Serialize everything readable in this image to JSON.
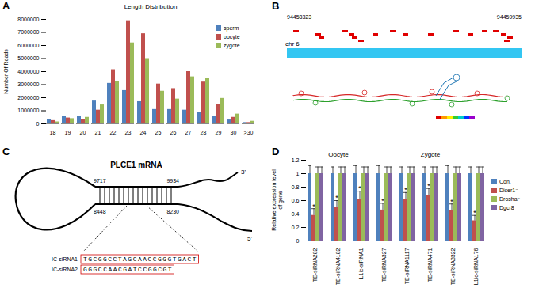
{
  "panel_labels": [
    "A",
    "B",
    "C",
    "D"
  ],
  "chart_data": [
    {
      "type": "bar",
      "title": "Length Distribution",
      "y_label": "Number Of Reads",
      "categories": [
        "18",
        "19",
        "20",
        "21",
        "22",
        "23",
        "24",
        "25",
        "26",
        "27",
        "28",
        "29",
        "30",
        ">30"
      ],
      "series": [
        {
          "name": "sperm",
          "color": "#4f81bd",
          "values": [
            350000,
            550000,
            600000,
            1750000,
            3100000,
            2550000,
            1700000,
            1100000,
            1100000,
            1050000,
            850000,
            600000,
            300000,
            100000
          ]
        },
        {
          "name": "oocyte",
          "color": "#c0504d",
          "values": [
            250000,
            450000,
            350000,
            1050000,
            4150000,
            7900000,
            6900000,
            3050000,
            2700000,
            4000000,
            3200000,
            1500000,
            500000,
            100000
          ]
        },
        {
          "name": "zygote",
          "color": "#9bbb59",
          "values": [
            150000,
            400000,
            500000,
            1450000,
            3250000,
            6200000,
            5000000,
            2500000,
            1900000,
            3600000,
            3500000,
            1950000,
            750000,
            200000
          ]
        }
      ],
      "ylim": [
        0,
        8000000
      ],
      "yticks": [
        0,
        1000000,
        2000000,
        3000000,
        4000000,
        5000000,
        6000000,
        7000000,
        8000000
      ],
      "grid": false,
      "legend": "top-right"
    },
    {
      "type": "bar",
      "y_label": "Relative expression level of gene",
      "categories": [
        "TE-siRNA282",
        "TE-siRNA4182",
        "L1ic-siRNA1",
        "TE-siRNA327",
        "TE-siRNA1117",
        "TE-siRNA471",
        "TE-siRNA3322",
        "L1ic-siRNA176"
      ],
      "groups": [
        {
          "name": "Oocyte",
          "from": "TE-siRNA282",
          "to": "L1ic-siRNA1"
        },
        {
          "name": "Zygote",
          "from": "TE-siRNA327",
          "to": "L1ic-siRNA176"
        }
      ],
      "series": [
        {
          "name": "Con.",
          "color": "#4f81bd",
          "values": [
            1,
            1,
            1,
            1,
            1,
            1,
            1,
            1
          ],
          "errors": [
            0.12,
            0.1,
            0.12,
            0.12,
            0.1,
            0.1,
            0.12,
            0.1
          ]
        },
        {
          "name": "Dicer1⁻",
          "color": "#c0504d",
          "values": [
            0.38,
            0.5,
            0.62,
            0.46,
            0.62,
            0.68,
            0.45,
            0.3
          ],
          "errors": [
            0.1,
            0.1,
            0.12,
            0.1,
            0.1,
            0.1,
            0.1,
            0.08
          ],
          "annotation": "*"
        },
        {
          "name": "Drosha⁻",
          "color": "#9bbb59",
          "values": [
            1,
            1,
            1,
            1,
            1,
            1,
            1,
            1
          ],
          "errors": [
            0.1,
            0.1,
            0.1,
            0.1,
            0.1,
            0.1,
            0.1,
            0.1
          ]
        },
        {
          "name": "Dgcr8⁻",
          "color": "#8064a2",
          "values": [
            1,
            1,
            1,
            1,
            1,
            1,
            1,
            1
          ],
          "errors": [
            0.1,
            0.1,
            0.1,
            0.1,
            0.1,
            0.1,
            0.1,
            0.1
          ]
        }
      ],
      "ylim": [
        0,
        1.2
      ],
      "yticks": [
        0,
        0.2,
        0.4,
        0.6,
        0.8,
        1,
        1.2
      ],
      "grid": false,
      "legend": "right"
    }
  ],
  "diagram_b": {
    "start": "94458323",
    "end": "94459935",
    "chromosome": "chr 6"
  },
  "diagram_c": {
    "title": "PLCE1 mRNA",
    "end_3": "3'",
    "end_5": "5'",
    "positions": {
      "top_left": 9717,
      "top_right": 9934,
      "bottom_left": 8448,
      "bottom_right": 8230
    },
    "sirnas": [
      {
        "name": "IC-siRNA1",
        "sequence": "TGCGGCCTAGCAACCGGGTGACT"
      },
      {
        "name": "IC-siRNA2",
        "sequence": "GGGCCAACGATCCGGCGT"
      }
    ]
  }
}
